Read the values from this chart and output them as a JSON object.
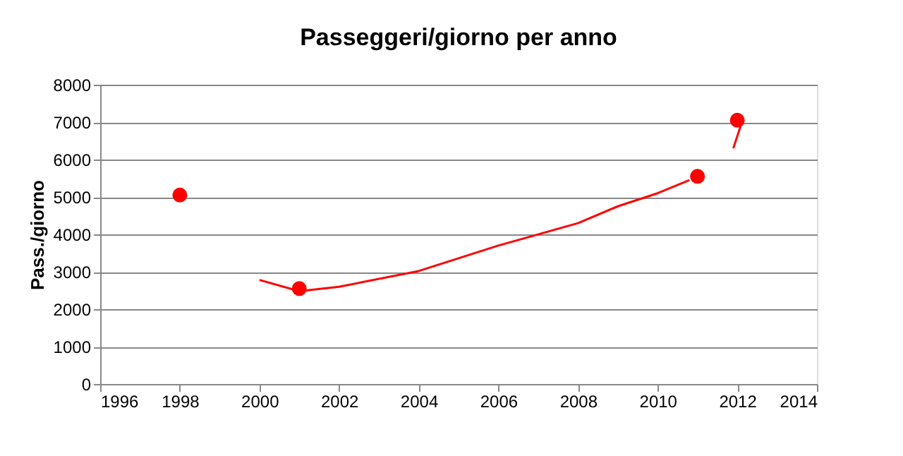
{
  "chart_data": {
    "type": "scatter",
    "title": "Passeggeri/giorno per anno",
    "ylabel": "Pass./giorno",
    "xlim": [
      1996,
      2014
    ],
    "xticks": [
      1996,
      1998,
      2000,
      2002,
      2004,
      2006,
      2008,
      2010,
      2012,
      2014
    ],
    "ylim": [
      0,
      8000
    ],
    "yticks": [
      0,
      1000,
      2000,
      3000,
      4000,
      5000,
      6000,
      7000,
      8000
    ],
    "grid": "y",
    "marker": "circle",
    "series": [
      {
        "color": "#ff0000",
        "x": [
          1998,
          2001,
          2011,
          2012
        ],
        "values": [
          5050,
          2550,
          5550,
          7050
        ]
      },
      {
        "type": "line",
        "color": "#ff0000",
        "marker": "none",
        "x": [
          2000,
          2001,
          2002,
          2004,
          2006,
          2008,
          2009,
          2010,
          2010.8
        ],
        "values": [
          2780,
          2480,
          2600,
          3020,
          3700,
          4300,
          4750,
          5100,
          5450
        ]
      },
      {
        "type": "line",
        "color": "#ff0000",
        "marker": "none",
        "x": [
          2011.9,
          2012.1
        ],
        "values": [
          6300,
          6950
        ]
      }
    ]
  }
}
